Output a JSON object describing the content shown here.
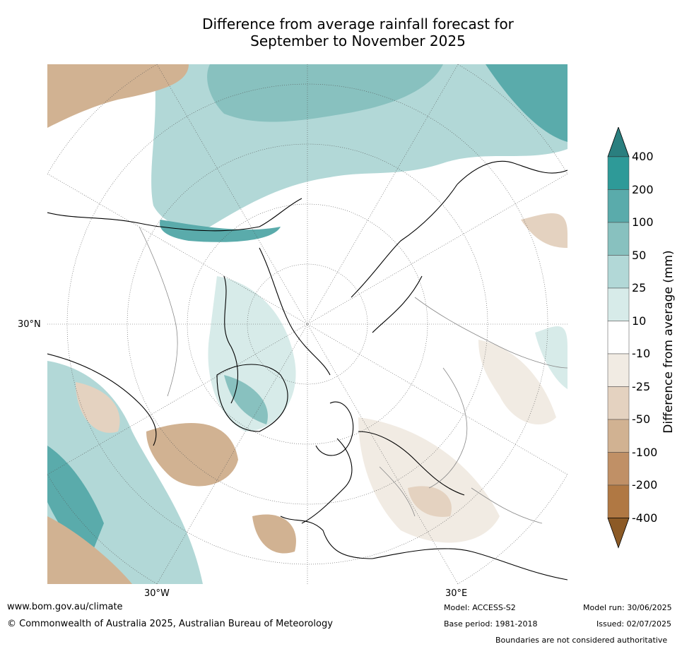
{
  "title": {
    "line1": "Difference from average rainfall forecast for",
    "line2": "September to November 2025"
  },
  "map": {
    "labels": {
      "lat_30n": "30°N",
      "lon_30w": "30°W",
      "lon_30e": "30°E"
    }
  },
  "colorbar": {
    "title": "Difference from average (mm)",
    "labels": [
      "400",
      "200",
      "100",
      "50",
      "25",
      "10",
      "-10",
      "-25",
      "-50",
      "-100",
      "-200",
      "-400"
    ],
    "colors_top_to_bottom": [
      "#2a7f7f",
      "#2e9a98",
      "#5aabab",
      "#88c1bf",
      "#b2d8d7",
      "#d7ebe9",
      "#ffffff",
      "#f1ebe3",
      "#e4d2c0",
      "#d1b292",
      "#c09066",
      "#b07843",
      "#8c5a26"
    ]
  },
  "footer": {
    "url": "www.bom.gov.au/climate",
    "copyright": "© Commonwealth of Australia 2025, Australian Bureau of Meteorology",
    "model": "Model: ACCESS-S2",
    "base_period": "Base period: 1981-2018",
    "model_run": "Model run: 30/06/2025",
    "issued": "Issued: 02/07/2025",
    "disclaimer": "Boundaries are not considered authoritative"
  }
}
